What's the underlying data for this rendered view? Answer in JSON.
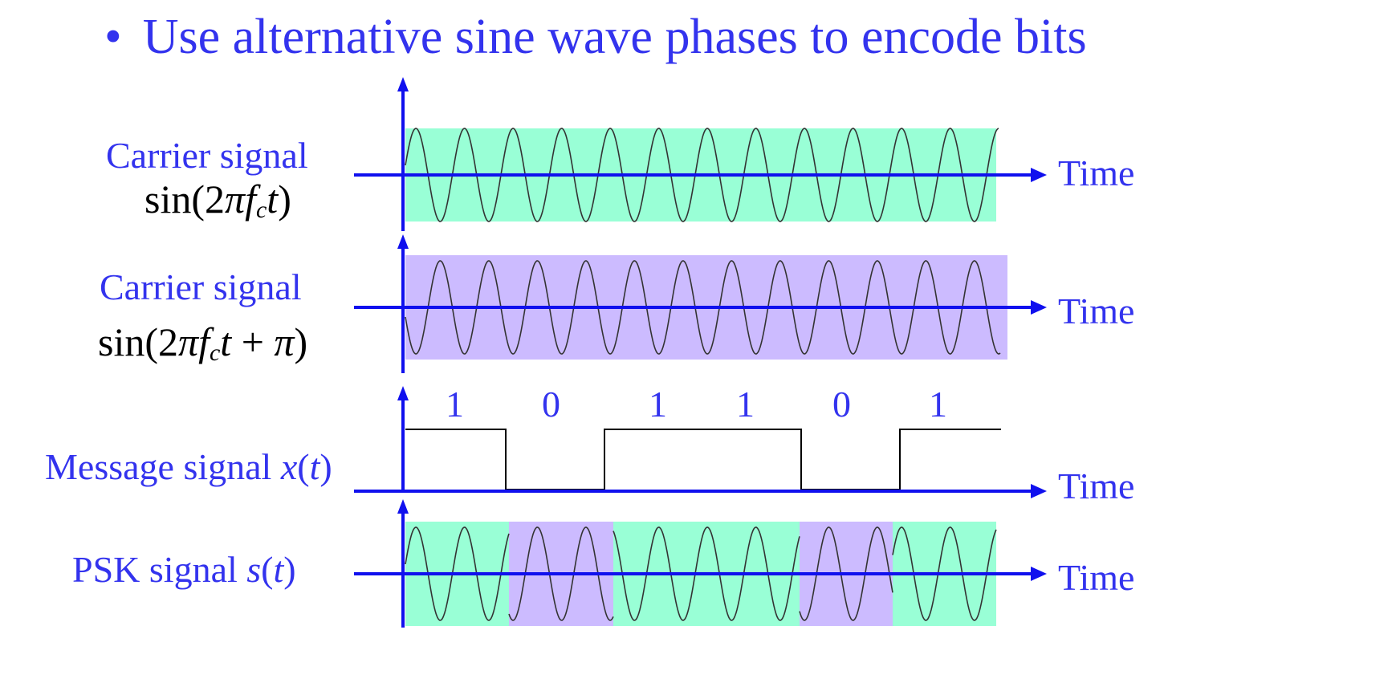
{
  "title": {
    "bullet": "•",
    "text": "Use alternative sine wave phases to encode bits"
  },
  "panels": {
    "carrier1": {
      "label": "Carrier signal",
      "eq_pre": "sin(2",
      "eq_pi": "π",
      "eq_f": "f",
      "eq_sub": "c",
      "eq_t": "t",
      "eq_post": ")",
      "axis_label": "Time"
    },
    "carrier2": {
      "label": "Carrier signal",
      "eq_pre": "sin(2",
      "eq_pi": "π",
      "eq_f": "f",
      "eq_sub": "c",
      "eq_t": "t",
      "eq_plus": " + ",
      "eq_pi2": "π",
      "eq_post": ")",
      "axis_label": "Time"
    },
    "message": {
      "label_pre": "Message signal ",
      "label_var": "x",
      "label_paren_open": "(",
      "label_arg": "t",
      "label_paren_close": ")",
      "axis_label": "Time",
      "bits": [
        "1",
        "0",
        "1",
        "1",
        "0",
        "1"
      ]
    },
    "psk": {
      "label_pre": "PSK signal ",
      "label_var": "s",
      "label_paren_open": "(",
      "label_arg": "t",
      "label_paren_close": ")",
      "axis_label": "Time"
    }
  },
  "colors": {
    "text_blue": "#3333ee",
    "axis_blue": "#1010ee",
    "green_fill": "#99ffd6",
    "purple_fill": "#ccbbff",
    "wave_line": "#333333"
  }
}
